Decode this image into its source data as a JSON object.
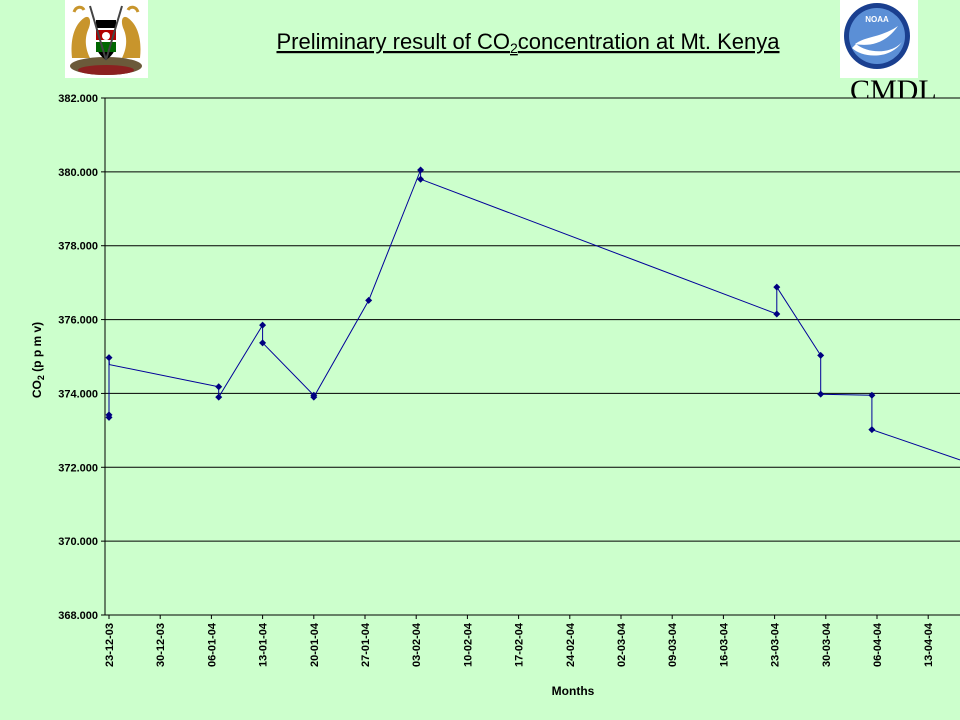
{
  "header": {
    "title_main": "Preliminary result of CO",
    "title_sub": "2",
    "title_rest": "concentration at Mt. Kenya",
    "left_logo": "kenya-coat-of-arms",
    "right_logo": "noaa-logo",
    "noaa_text": "NOAA",
    "cmdl_text": "CMDL"
  },
  "chart_data": {
    "type": "line",
    "title": "Preliminary result of CO2concentration at Mt. Kenya",
    "xlabel": "Months",
    "ylabel_main": "CO",
    "ylabel_sub": "2",
    "ylabel_rest": " (p p m v)",
    "ylim": [
      368,
      382
    ],
    "y_ticks": [
      "368.000",
      "370.000",
      "372.000",
      "374.000",
      "376.000",
      "378.000",
      "380.000",
      "382.000"
    ],
    "x_ticks": [
      "23-12-03",
      "30-12-03",
      "06-01-04",
      "13-01-04",
      "20-01-04",
      "27-01-04",
      "03-02-04",
      "10-02-04",
      "17-02-04",
      "24-02-04",
      "02-03-04",
      "09-03-04",
      "16-03-04",
      "23-03-04",
      "30-03-04",
      "06-04-04",
      "13-04-04"
    ],
    "grid": "horizontal",
    "line_color": "#000099",
    "marker_color": "#000080",
    "background": "#ccffcc",
    "series": [
      {
        "x": [
          0.0,
          0.0,
          0.0,
          0.05,
          15.0,
          15.0,
          21.0,
          21.0,
          28.0,
          28.0,
          35.5,
          42.6,
          42.6,
          91.3,
          91.3,
          97.3,
          97.3,
          104.3,
          104.3
        ],
        "y": [
          373.35,
          373.42,
          374.97,
          374.78,
          374.18,
          373.9,
          375.85,
          375.37,
          373.95,
          373.9,
          376.52,
          380.05,
          379.8,
          376.15,
          376.88,
          375.03,
          373.98,
          373.95,
          373.02
        ],
        "markers": [
          true,
          true,
          true,
          true,
          true,
          true,
          true,
          true,
          true,
          true,
          true,
          true,
          true,
          true,
          true,
          true,
          true,
          true,
          true
        ]
      }
    ],
    "line_extension": {
      "x": [
        104.3,
        116.7
      ],
      "y": [
        373.02,
        372.2
      ]
    },
    "flat_segment_no_markers": {
      "x": [
        97.3,
        104.3
      ],
      "y": [
        373.98,
        373.95
      ]
    }
  }
}
